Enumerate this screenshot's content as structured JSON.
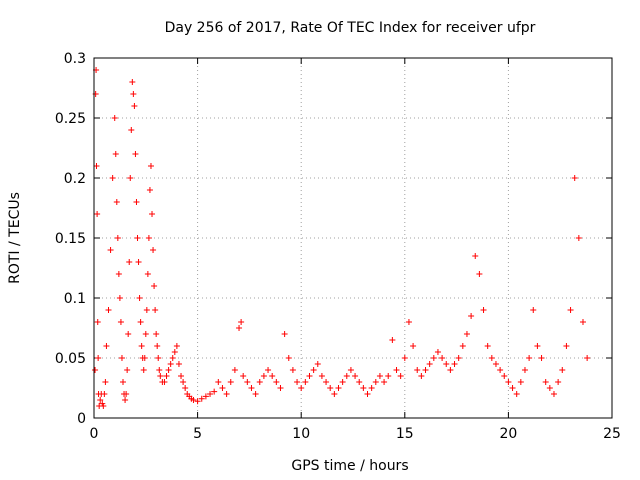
{
  "chart_data": {
    "type": "scatter",
    "title": "Day 256 of 2017, Rate Of TEC Index for receiver ufpr",
    "xlabel": "GPS time / hours",
    "ylabel": "ROTI / TECUs",
    "xlim": [
      0,
      25
    ],
    "ylim": [
      0,
      0.3
    ],
    "x_ticks": [
      {
        "value": 0,
        "label": "0"
      },
      {
        "value": 5,
        "label": "5"
      },
      {
        "value": 10,
        "label": "10"
      },
      {
        "value": 15,
        "label": "15"
      },
      {
        "value": 20,
        "label": "20"
      },
      {
        "value": 25,
        "label": "25"
      }
    ],
    "y_ticks": [
      {
        "value": 0,
        "label": "0"
      },
      {
        "value": 0.05,
        "label": "0.05"
      },
      {
        "value": 0.1,
        "label": "0.1"
      },
      {
        "value": 0.15,
        "label": "0.15"
      },
      {
        "value": 0.2,
        "label": "0.2"
      },
      {
        "value": 0.25,
        "label": "0.25"
      },
      {
        "value": 0.3,
        "label": "0.3"
      }
    ],
    "grid": true,
    "marker": "plus",
    "color": "#ff0000",
    "series": [
      {
        "name": "ROTI",
        "x": [
          0.05,
          0.08,
          0.1,
          0.12,
          0.15,
          0.18,
          0.2,
          0.22,
          0.25,
          0.3,
          0.35,
          0.4,
          0.45,
          0.5,
          0.55,
          0.6,
          0.7,
          0.8,
          0.9,
          1.0,
          1.05,
          1.1,
          1.15,
          1.2,
          1.25,
          1.3,
          1.35,
          1.4,
          1.45,
          1.5,
          1.55,
          1.6,
          1.65,
          1.7,
          1.75,
          1.8,
          1.85,
          1.9,
          1.95,
          2.0,
          2.05,
          2.1,
          2.15,
          2.2,
          2.25,
          2.3,
          2.35,
          2.4,
          2.45,
          2.5,
          2.55,
          2.6,
          2.65,
          2.7,
          2.75,
          2.8,
          2.85,
          2.9,
          2.95,
          3.0,
          3.05,
          3.1,
          3.15,
          3.2,
          3.3,
          3.4,
          3.5,
          3.6,
          3.7,
          3.8,
          3.9,
          4.0,
          4.1,
          4.2,
          4.3,
          4.4,
          4.5,
          4.6,
          4.7,
          4.8,
          5.0,
          5.2,
          5.4,
          5.6,
          5.8,
          6.0,
          6.2,
          6.4,
          6.6,
          6.8,
          7.0,
          7.1,
          7.2,
          7.4,
          7.6,
          7.8,
          8.0,
          8.2,
          8.4,
          8.6,
          8.8,
          9.0,
          9.2,
          9.4,
          9.6,
          9.8,
          10.0,
          10.2,
          10.4,
          10.6,
          10.8,
          11.0,
          11.2,
          11.4,
          11.6,
          11.8,
          12.0,
          12.2,
          12.4,
          12.6,
          12.8,
          13.0,
          13.2,
          13.4,
          13.6,
          13.8,
          14.0,
          14.2,
          14.4,
          14.6,
          14.8,
          15.0,
          15.2,
          15.4,
          15.6,
          15.8,
          16.0,
          16.2,
          16.4,
          16.6,
          16.8,
          17.0,
          17.2,
          17.4,
          17.6,
          17.8,
          18.0,
          18.2,
          18.4,
          18.6,
          18.8,
          19.0,
          19.2,
          19.4,
          19.6,
          19.8,
          20.0,
          20.2,
          20.4,
          20.6,
          20.8,
          21.0,
          21.2,
          21.4,
          21.6,
          21.8,
          22.0,
          22.2,
          22.4,
          22.6,
          22.8,
          23.0,
          23.2,
          23.4,
          23.6,
          23.8
        ],
        "y": [
          0.04,
          0.27,
          0.29,
          0.21,
          0.17,
          0.08,
          0.05,
          0.02,
          0.01,
          0.015,
          0.02,
          0.012,
          0.01,
          0.02,
          0.03,
          0.06,
          0.09,
          0.14,
          0.2,
          0.25,
          0.22,
          0.18,
          0.15,
          0.12,
          0.1,
          0.08,
          0.05,
          0.03,
          0.02,
          0.015,
          0.02,
          0.04,
          0.07,
          0.13,
          0.2,
          0.24,
          0.28,
          0.27,
          0.26,
          0.22,
          0.18,
          0.15,
          0.13,
          0.1,
          0.08,
          0.06,
          0.05,
          0.04,
          0.05,
          0.07,
          0.09,
          0.12,
          0.15,
          0.19,
          0.21,
          0.17,
          0.14,
          0.11,
          0.09,
          0.07,
          0.06,
          0.05,
          0.04,
          0.035,
          0.03,
          0.03,
          0.035,
          0.04,
          0.045,
          0.05,
          0.055,
          0.06,
          0.045,
          0.035,
          0.03,
          0.025,
          0.02,
          0.018,
          0.016,
          0.015,
          0.014,
          0.016,
          0.018,
          0.02,
          0.022,
          0.03,
          0.025,
          0.02,
          0.03,
          0.04,
          0.075,
          0.08,
          0.035,
          0.03,
          0.025,
          0.02,
          0.03,
          0.035,
          0.04,
          0.035,
          0.03,
          0.025,
          0.07,
          0.05,
          0.04,
          0.03,
          0.025,
          0.03,
          0.035,
          0.04,
          0.045,
          0.035,
          0.03,
          0.025,
          0.02,
          0.025,
          0.03,
          0.035,
          0.04,
          0.035,
          0.03,
          0.025,
          0.02,
          0.025,
          0.03,
          0.035,
          0.03,
          0.035,
          0.065,
          0.04,
          0.035,
          0.05,
          0.08,
          0.06,
          0.04,
          0.035,
          0.04,
          0.045,
          0.05,
          0.055,
          0.05,
          0.045,
          0.04,
          0.045,
          0.05,
          0.06,
          0.07,
          0.085,
          0.135,
          0.12,
          0.09,
          0.06,
          0.05,
          0.045,
          0.04,
          0.035,
          0.03,
          0.025,
          0.02,
          0.03,
          0.04,
          0.05,
          0.09,
          0.06,
          0.05,
          0.03,
          0.025,
          0.02,
          0.03,
          0.04,
          0.06,
          0.09,
          0.2,
          0.15,
          0.08,
          0.05
        ]
      }
    ]
  }
}
